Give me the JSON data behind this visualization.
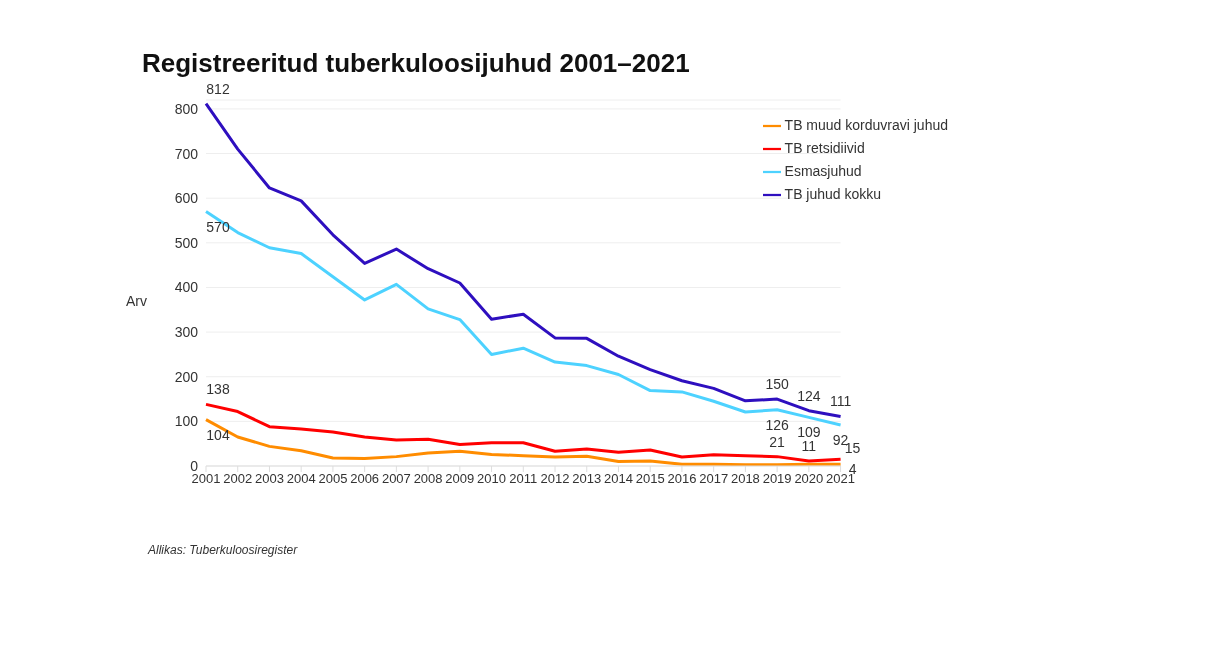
{
  "chart_data": {
    "type": "line",
    "title": "Registreeritud tuberkuloosijuhud 2001–2021",
    "ylabel": "Arv",
    "categories": [
      "2001",
      "2002",
      "2003",
      "2004",
      "2005",
      "2006",
      "2007",
      "2008",
      "2009",
      "2010",
      "2011",
      "2012",
      "2013",
      "2014",
      "2015",
      "2016",
      "2017",
      "2018",
      "2019",
      "2020",
      "2021"
    ],
    "series": [
      {
        "name": "TB muud korduvravi juhud",
        "color": "#ff8c00",
        "values": [
          104,
          65,
          44,
          34,
          18,
          17,
          21,
          29,
          33,
          26,
          23,
          20,
          22,
          10,
          11,
          4,
          4,
          3,
          3,
          4,
          4
        ],
        "value_labels": [
          "104",
          null,
          null,
          null,
          null,
          null,
          null,
          null,
          null,
          null,
          null,
          null,
          null,
          null,
          null,
          null,
          null,
          null,
          null,
          null,
          "4"
        ]
      },
      {
        "name": "TB retsidiivid",
        "color": "#ff0000",
        "values": [
          138,
          122,
          88,
          83,
          76,
          65,
          58,
          60,
          48,
          52,
          52,
          33,
          38,
          31,
          36,
          20,
          25,
          23,
          21,
          11,
          15
        ],
        "value_labels": [
          "138",
          null,
          null,
          null,
          null,
          null,
          null,
          null,
          null,
          null,
          null,
          null,
          null,
          null,
          null,
          null,
          null,
          null,
          "21",
          "11",
          "15"
        ]
      },
      {
        "name": "Esmasjuhud",
        "color": "#4dd2ff",
        "values": [
          570,
          523,
          489,
          476,
          424,
          372,
          407,
          352,
          328,
          250,
          264,
          233,
          225,
          205,
          169,
          166,
          145,
          121,
          126,
          109,
          92
        ],
        "value_labels": [
          "570",
          null,
          null,
          null,
          null,
          null,
          null,
          null,
          null,
          null,
          null,
          null,
          null,
          null,
          null,
          null,
          null,
          null,
          "126",
          "109",
          "92"
        ]
      },
      {
        "name": "TB juhud kokku",
        "color": "#2e0fbf",
        "values": [
          812,
          710,
          623,
          594,
          518,
          454,
          486,
          442,
          410,
          329,
          340,
          287,
          286,
          246,
          216,
          191,
          174,
          146,
          150,
          124,
          111
        ],
        "value_labels": [
          "812",
          null,
          null,
          null,
          null,
          null,
          null,
          null,
          null,
          null,
          null,
          null,
          null,
          null,
          null,
          null,
          null,
          null,
          "150",
          "124",
          "111"
        ]
      }
    ],
    "ylim": [
      0,
      820
    ],
    "yticks": [
      0,
      100,
      200,
      300,
      400,
      500,
      600,
      700,
      800
    ],
    "grid": "y",
    "legend": "top right",
    "marker": "none",
    "line_style": "solid",
    "annotations": [
      "Allikas: Tuberkuloosiregister"
    ]
  }
}
